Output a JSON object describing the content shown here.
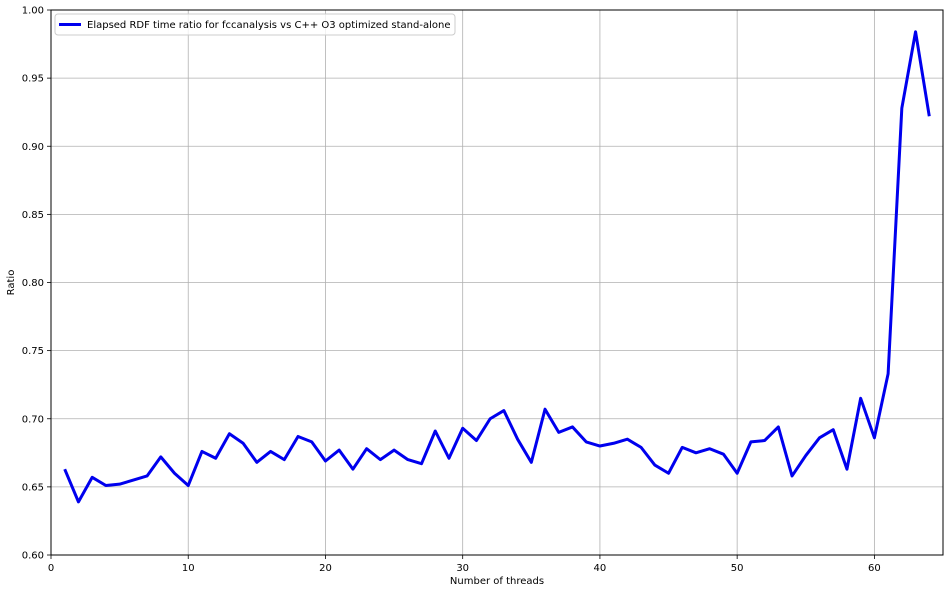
{
  "chart_data": {
    "type": "line",
    "title": "",
    "xlabel": "Number of threads",
    "ylabel": "Ratio",
    "xlim": [
      0,
      65
    ],
    "ylim": [
      0.6,
      1.0
    ],
    "x_ticks": [
      0,
      10,
      20,
      30,
      40,
      50,
      60
    ],
    "x_tick_labels": [
      "0",
      "10",
      "20",
      "30",
      "40",
      "50",
      "60"
    ],
    "y_ticks": [
      0.6,
      0.65,
      0.7,
      0.75,
      0.8,
      0.85,
      0.9,
      0.95,
      1.0
    ],
    "y_tick_labels": [
      "0.60",
      "0.65",
      "0.70",
      "0.75",
      "0.80",
      "0.85",
      "0.90",
      "0.95",
      "1.00"
    ],
    "grid": true,
    "legend_position": "upper-left",
    "series": [
      {
        "name": "Elapsed RDF time ratio for fccanalysis vs C++ O3 optimized stand-alone",
        "color": "#0000ee",
        "x": [
          1,
          2,
          3,
          4,
          5,
          6,
          7,
          8,
          9,
          10,
          11,
          12,
          13,
          14,
          15,
          16,
          17,
          18,
          19,
          20,
          21,
          22,
          23,
          24,
          25,
          26,
          27,
          28,
          29,
          30,
          31,
          32,
          33,
          34,
          35,
          36,
          37,
          38,
          39,
          40,
          41,
          42,
          43,
          44,
          45,
          46,
          47,
          48,
          49,
          50,
          51,
          52,
          53,
          54,
          55,
          56,
          57,
          58,
          59,
          60,
          61,
          62,
          63,
          64
        ],
        "y": [
          0.663,
          0.639,
          0.657,
          0.651,
          0.652,
          0.655,
          0.658,
          0.672,
          0.66,
          0.651,
          0.676,
          0.671,
          0.689,
          0.682,
          0.668,
          0.676,
          0.67,
          0.687,
          0.683,
          0.669,
          0.677,
          0.663,
          0.678,
          0.67,
          0.677,
          0.67,
          0.667,
          0.691,
          0.671,
          0.693,
          0.684,
          0.7,
          0.706,
          0.685,
          0.668,
          0.707,
          0.69,
          0.694,
          0.683,
          0.68,
          0.682,
          0.685,
          0.679,
          0.666,
          0.66,
          0.679,
          0.675,
          0.678,
          0.674,
          0.66,
          0.683,
          0.684,
          0.694,
          0.658,
          0.673,
          0.686,
          0.692,
          0.663,
          0.715,
          0.686,
          0.733,
          0.928,
          0.984,
          0.922
        ]
      }
    ]
  }
}
